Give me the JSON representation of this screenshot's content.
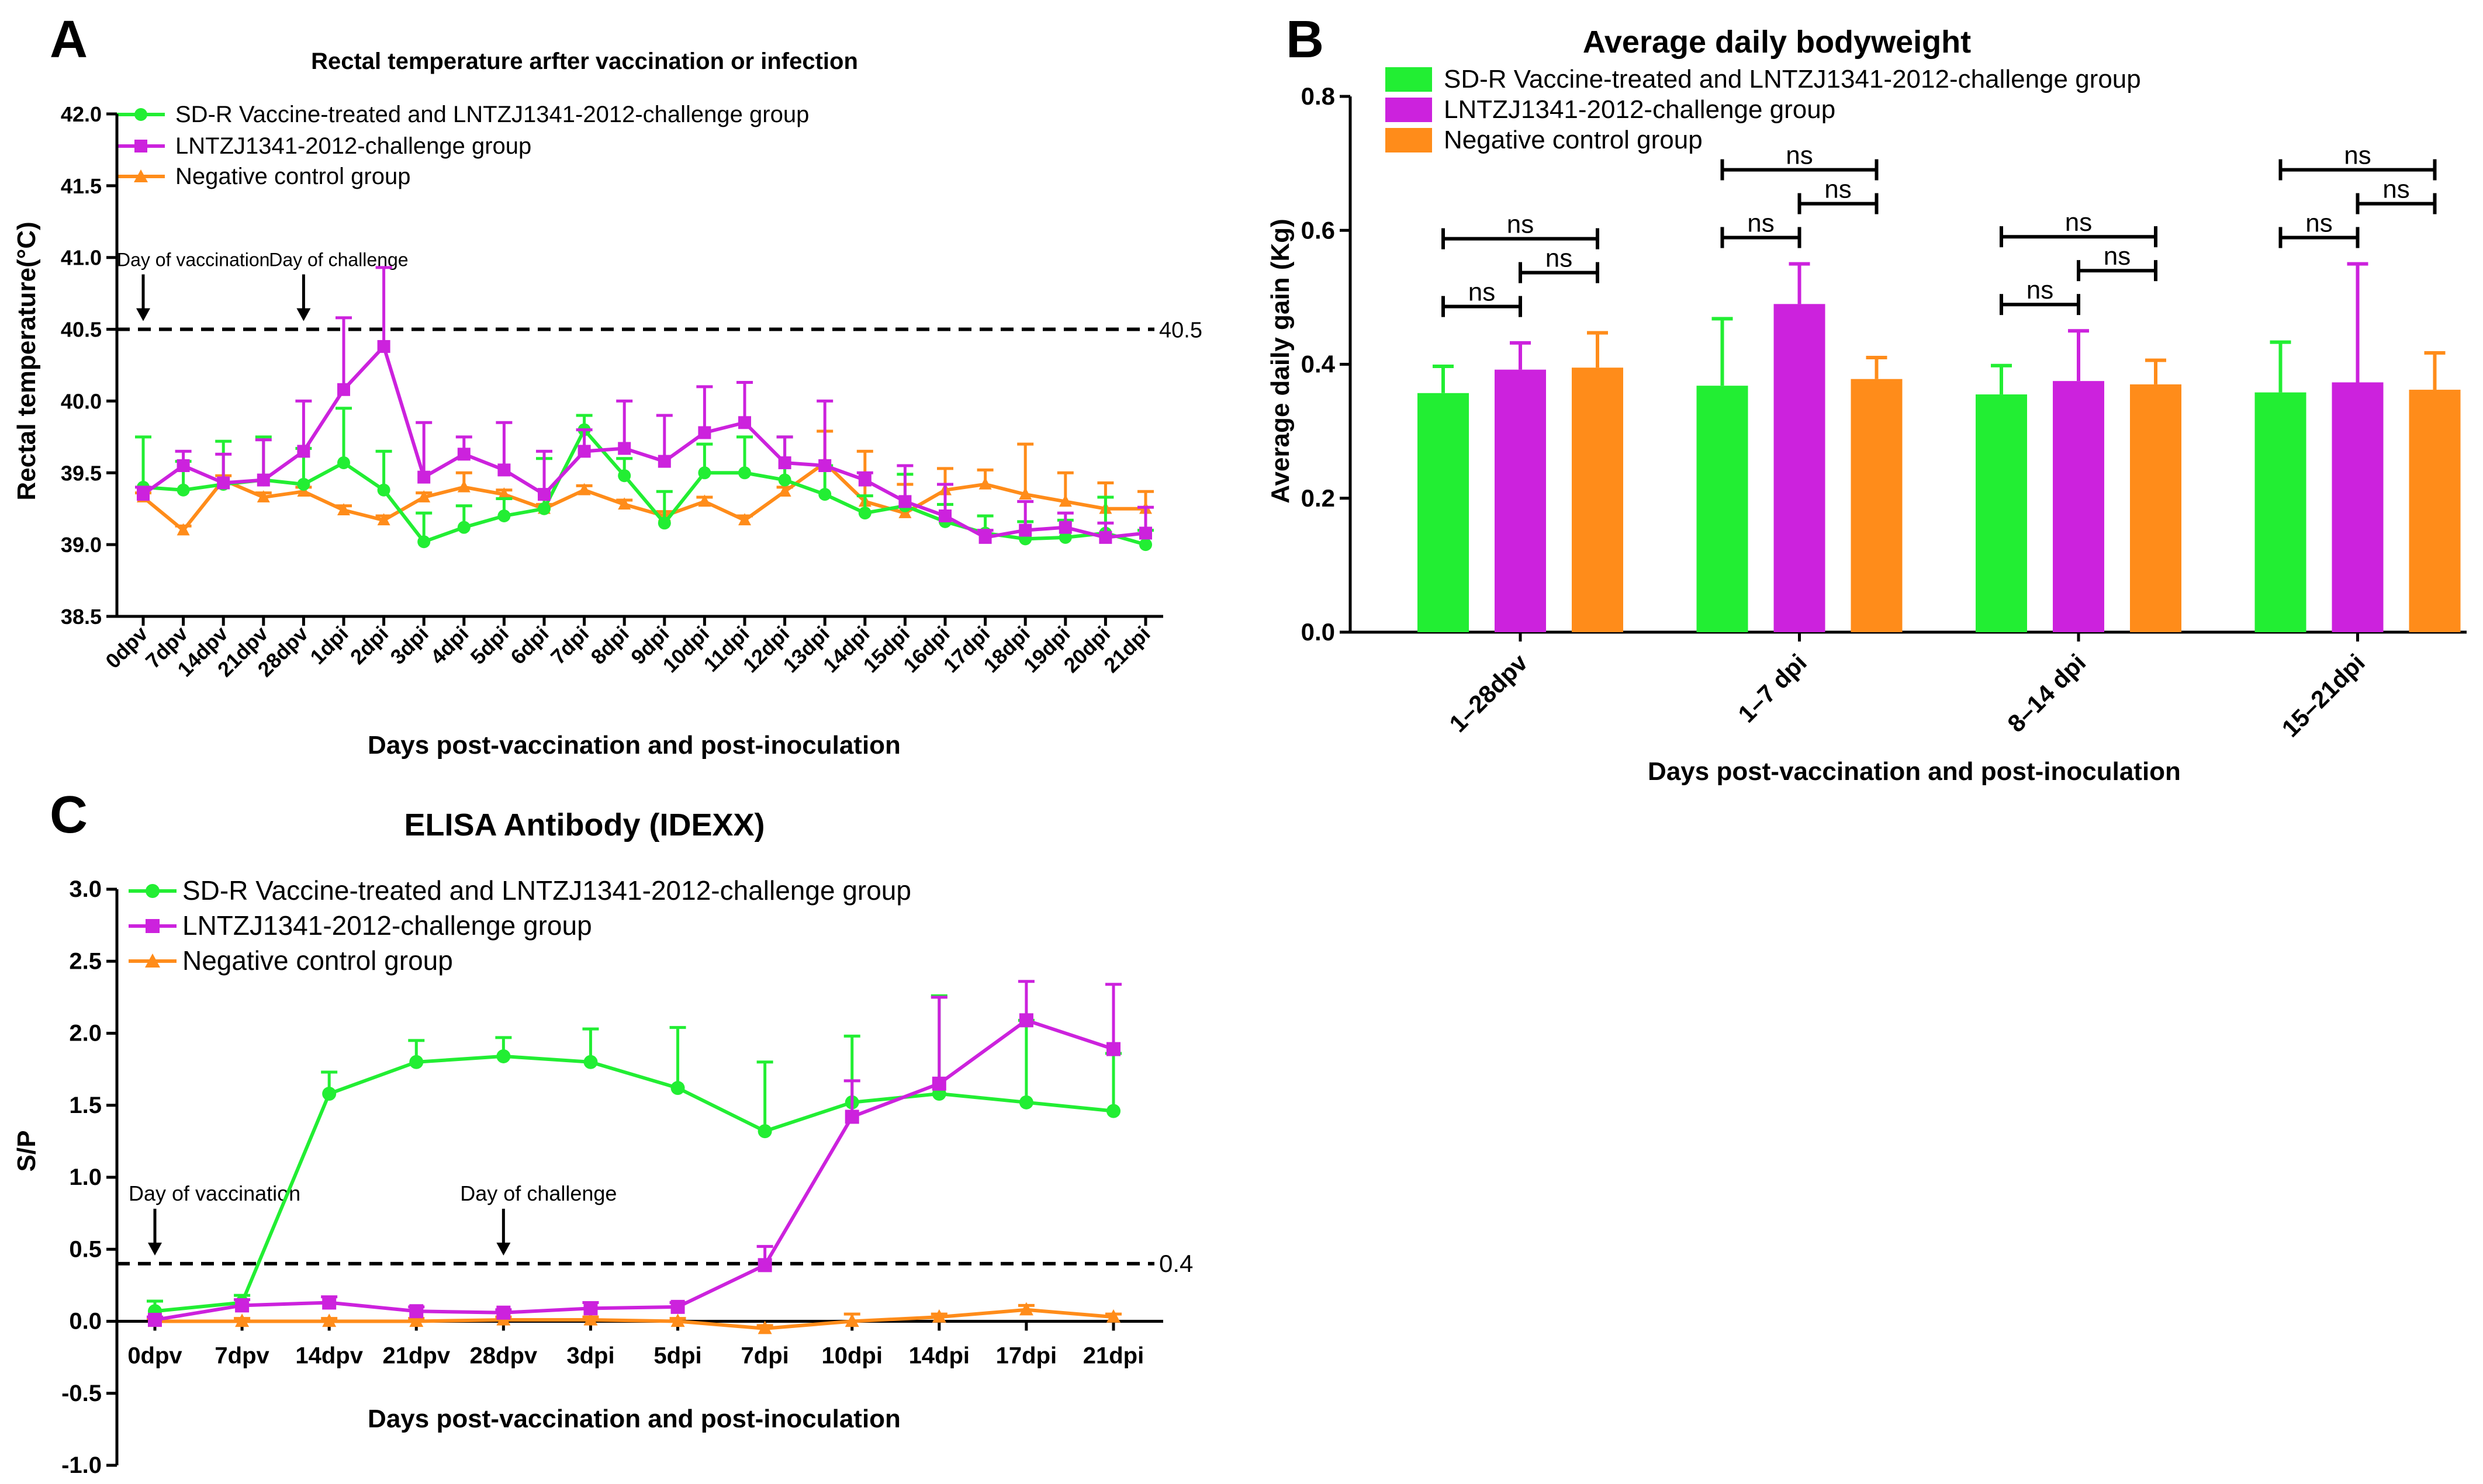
{
  "panels": {
    "A": {
      "letter": "A"
    },
    "B": {
      "letter": "B"
    },
    "C": {
      "letter": "C"
    }
  },
  "legend": {
    "green": "SD-R Vaccine-treated and LNTZJ1341-2012-challenge group",
    "magenta": "LNTZJ1341-2012-challenge group",
    "orange": "Negative control group"
  },
  "colors": {
    "green": "#22ee33",
    "magenta": "#cc22dd",
    "orange": "#ff8c1a",
    "axis": "#000000"
  },
  "chart_data": [
    {
      "id": "A",
      "type": "line",
      "title": "Rectal temperature arfter vaccination or infection",
      "xlabel": "Days post-vaccination and post-inoculation",
      "ylabel": "Rectal temperature(°C)",
      "ylim": [
        38.5,
        42.0
      ],
      "yticks": [
        "38.5",
        "39.0",
        "39.5",
        "40.0",
        "40.5",
        "41.0",
        "41.5",
        "42.0"
      ],
      "categories": [
        "0dpv",
        "7dpv",
        "14dpv",
        "21dpv",
        "28dpv",
        "1dpi",
        "2dpi",
        "3dpi",
        "4dpi",
        "5dpi",
        "6dpi",
        "7dpi",
        "8dpi",
        "9dpi",
        "10dpi",
        "11dpi",
        "12dpi",
        "13dpi",
        "14dpi",
        "15dpi",
        "16dpi",
        "17dpi",
        "18dpi",
        "19dpi",
        "20dpi",
        "21dpi"
      ],
      "series": [
        {
          "name": "SD-R Vaccine-treated and LNTZJ1341-2012-challenge group",
          "color": "green",
          "marker": "circle",
          "values": [
            39.4,
            39.38,
            39.42,
            39.45,
            39.42,
            39.57,
            39.38,
            39.02,
            39.12,
            39.2,
            39.25,
            39.8,
            39.48,
            39.15,
            39.5,
            39.5,
            39.45,
            39.35,
            39.22,
            39.27,
            39.16,
            39.08,
            39.04,
            39.05,
            39.08,
            39.0
          ],
          "errors": [
            0.35,
            0.2,
            0.3,
            0.3,
            0.25,
            0.38,
            0.27,
            0.2,
            0.15,
            0.12,
            0.35,
            0.1,
            0.12,
            0.22,
            0.2,
            0.25,
            0.3,
            0.2,
            0.12,
            0.22,
            0.12,
            0.12,
            0.12,
            0.12,
            0.25,
            0.1
          ]
        },
        {
          "name": "LNTZJ1341-2012-challenge group",
          "color": "magenta",
          "marker": "square",
          "values": [
            39.35,
            39.55,
            39.43,
            39.45,
            39.65,
            40.08,
            40.38,
            39.47,
            39.63,
            39.52,
            39.35,
            39.65,
            39.67,
            39.58,
            39.78,
            39.85,
            39.57,
            39.55,
            39.45,
            39.3,
            39.2,
            39.05,
            39.1,
            39.12,
            39.05,
            39.08
          ],
          "errors": [
            0.05,
            0.1,
            0.2,
            0.28,
            0.35,
            0.5,
            0.55,
            0.38,
            0.12,
            0.33,
            0.3,
            0.15,
            0.33,
            0.32,
            0.32,
            0.28,
            0.18,
            0.45,
            0.05,
            0.25,
            0.22,
            0.05,
            0.2,
            0.1,
            0.1,
            0.18
          ]
        },
        {
          "name": "Negative control group",
          "color": "orange",
          "marker": "triangle",
          "values": [
            39.33,
            39.1,
            39.45,
            39.33,
            39.37,
            39.24,
            39.17,
            39.33,
            39.4,
            39.35,
            39.25,
            39.38,
            39.28,
            39.2,
            39.3,
            39.17,
            39.37,
            39.57,
            39.3,
            39.22,
            39.38,
            39.42,
            39.35,
            39.3,
            39.25,
            39.25
          ],
          "errors": [
            0.03,
            0.03,
            0.03,
            0.03,
            0.03,
            0.03,
            0.03,
            0.03,
            0.1,
            0.03,
            0.03,
            0.03,
            0.03,
            0.03,
            0.03,
            0.03,
            0.03,
            0.22,
            0.35,
            0.2,
            0.15,
            0.1,
            0.35,
            0.2,
            0.18,
            0.12
          ]
        }
      ],
      "reference_line": {
        "value": 40.5,
        "label": "40.5"
      },
      "annotations": [
        {
          "text": "Day of vaccination",
          "category": "0dpv",
          "target": 40.5
        },
        {
          "text": "Day of challenge",
          "category": "28dpv",
          "target": 40.5
        }
      ]
    },
    {
      "id": "B",
      "type": "bar",
      "title": "Average daily bodyweight",
      "xlabel": "Days post-vaccination and post-inoculation",
      "ylabel": "Average daily gain (Kg)",
      "ylim": [
        0.0,
        0.8
      ],
      "yticks": [
        "0.0",
        "0.2",
        "0.4",
        "0.6",
        "0.8"
      ],
      "categories": [
        "1–28dpv",
        "1–7 dpi",
        "8–14 dpi",
        "15–21dpi"
      ],
      "series": [
        {
          "name": "SD-R Vaccine-treated and LNTZJ1341-2012-challenge group",
          "color": "green",
          "values": [
            0.357,
            0.368,
            0.355,
            0.358
          ],
          "errors": [
            0.04,
            0.1,
            0.043,
            0.075
          ]
        },
        {
          "name": "LNTZJ1341-2012-challenge group",
          "color": "magenta",
          "values": [
            0.392,
            0.49,
            0.375,
            0.373
          ],
          "errors": [
            0.04,
            0.06,
            0.075,
            0.177
          ]
        },
        {
          "name": "Negative control group",
          "color": "orange",
          "values": [
            0.395,
            0.378,
            0.37,
            0.362
          ],
          "errors": [
            0.052,
            0.032,
            0.036,
            0.055
          ]
        }
      ],
      "significance": {
        "label": "ns",
        "comparisons": [
          {
            "pair": [
              0,
              1
            ],
            "level": 0
          },
          {
            "pair": [
              1,
              2
            ],
            "level": 1
          },
          {
            "pair": [
              0,
              2
            ],
            "level": 2
          }
        ]
      }
    },
    {
      "id": "C",
      "type": "line",
      "title": "ELISA Antibody (IDEXX)",
      "xlabel": "Days post-vaccination and post-inoculation",
      "ylabel": "S/P",
      "ylim": [
        -1.0,
        3.0
      ],
      "yticks": [
        "-1.0",
        "-0.5",
        "0.0",
        "0.5",
        "1.0",
        "1.5",
        "2.0",
        "2.5",
        "3.0"
      ],
      "categories": [
        "0dpv",
        "7dpv",
        "14dpv",
        "21dpv",
        "28dpv",
        "3dpi",
        "5dpi",
        "7dpi",
        "10dpi",
        "14dpi",
        "17dpi",
        "21dpi"
      ],
      "series": [
        {
          "name": "SD-R Vaccine-treated and LNTZJ1341-2012-challenge group",
          "color": "green",
          "marker": "circle",
          "values": [
            0.07,
            0.13,
            1.58,
            1.8,
            1.84,
            1.8,
            1.62,
            1.32,
            1.52,
            1.58,
            1.52,
            1.46
          ],
          "errors": [
            0.07,
            0.05,
            0.15,
            0.15,
            0.13,
            0.23,
            0.42,
            0.48,
            0.46,
            0.68,
            0.57,
            0.4
          ]
        },
        {
          "name": "LNTZJ1341-2012-challenge group",
          "color": "magenta",
          "marker": "square",
          "values": [
            0.01,
            0.11,
            0.13,
            0.07,
            0.06,
            0.09,
            0.1,
            0.39,
            1.42,
            1.65,
            2.09,
            1.89
          ],
          "errors": [
            0.02,
            0.04,
            0.04,
            0.03,
            0.02,
            0.04,
            0.03,
            0.13,
            0.25,
            0.6,
            0.27,
            0.45
          ]
        },
        {
          "name": "Negative control group",
          "color": "orange",
          "marker": "triangle",
          "values": [
            0.0,
            0.0,
            0.0,
            0.0,
            0.01,
            0.01,
            0.0,
            -0.05,
            0.0,
            0.03,
            0.08,
            0.03
          ],
          "errors": [
            0.02,
            0.02,
            0.02,
            0.02,
            0.02,
            0.02,
            0.02,
            0.02,
            0.05,
            0.02,
            0.03,
            0.02
          ]
        }
      ],
      "reference_line": {
        "value": 0.4,
        "label": "0.4"
      },
      "annotations": [
        {
          "text": "Day of vaccination",
          "category": "0dpv",
          "target": 0.4
        },
        {
          "text": "Day of challenge",
          "category": "28dpv",
          "target": 0.4
        }
      ]
    }
  ]
}
